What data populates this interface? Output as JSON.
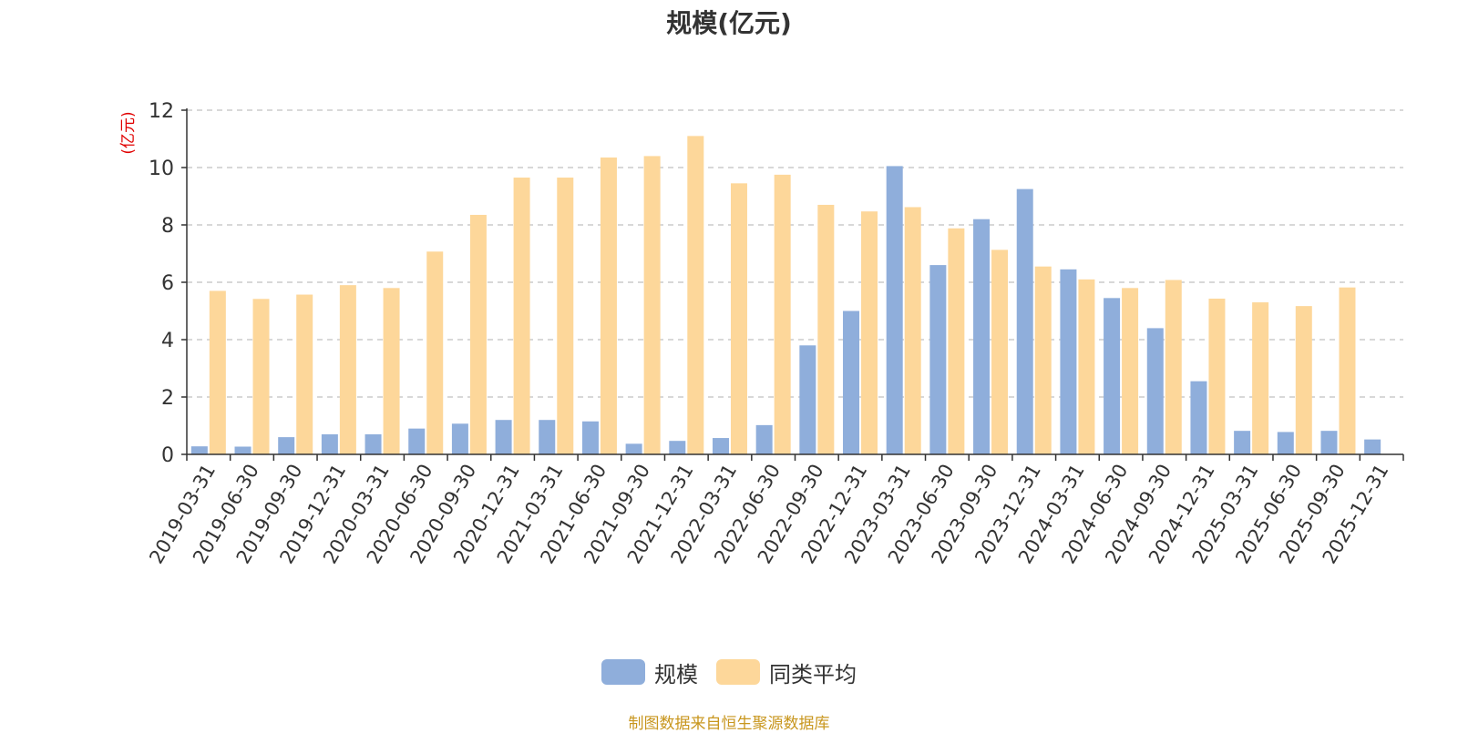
{
  "chart_data": {
    "type": "bar",
    "title": "规模(亿元)",
    "ylabel": "(亿元)",
    "xlabel": "",
    "ylim": [
      0,
      12
    ],
    "yticks": [
      0,
      2,
      4,
      6,
      8,
      10,
      12
    ],
    "grid": true,
    "legend_position": "bottom",
    "categories": [
      "2019-03-31",
      "2019-06-30",
      "2019-09-30",
      "2019-12-31",
      "2020-03-31",
      "2020-06-30",
      "2020-09-30",
      "2020-12-31",
      "2021-03-31",
      "2021-06-30",
      "2021-09-30",
      "2021-12-31",
      "2022-03-31",
      "2022-06-30",
      "2022-09-30",
      "2022-12-31",
      "2023-03-31",
      "2023-06-30",
      "2023-09-30",
      "2023-12-31",
      "2024-03-31",
      "2024-06-30",
      "2024-09-30",
      "2024-12-31",
      "2025-03-31",
      "2025-06-30",
      "2025-09-30",
      "2025-12-31"
    ],
    "series": [
      {
        "name": "规模",
        "color": "#8faedb",
        "values": [
          0.28,
          0.27,
          0.6,
          0.7,
          0.7,
          0.9,
          1.07,
          1.2,
          1.2,
          1.15,
          0.37,
          0.47,
          0.57,
          1.02,
          3.8,
          5.0,
          10.05,
          6.6,
          8.2,
          9.25,
          6.45,
          5.45,
          4.4,
          2.55,
          0.82,
          0.78,
          0.82,
          0.52
        ]
      },
      {
        "name": "同类平均",
        "color": "#fdd79a",
        "values": [
          5.7,
          5.42,
          5.57,
          5.9,
          5.8,
          7.07,
          8.35,
          9.65,
          9.65,
          10.35,
          10.4,
          11.1,
          9.45,
          9.75,
          8.7,
          8.47,
          8.62,
          7.88,
          7.13,
          6.55,
          6.1,
          5.8,
          6.08,
          5.43,
          5.3,
          5.17,
          5.82,
          null
        ]
      }
    ]
  },
  "source_note": "制图数据来自恒生聚源数据库"
}
